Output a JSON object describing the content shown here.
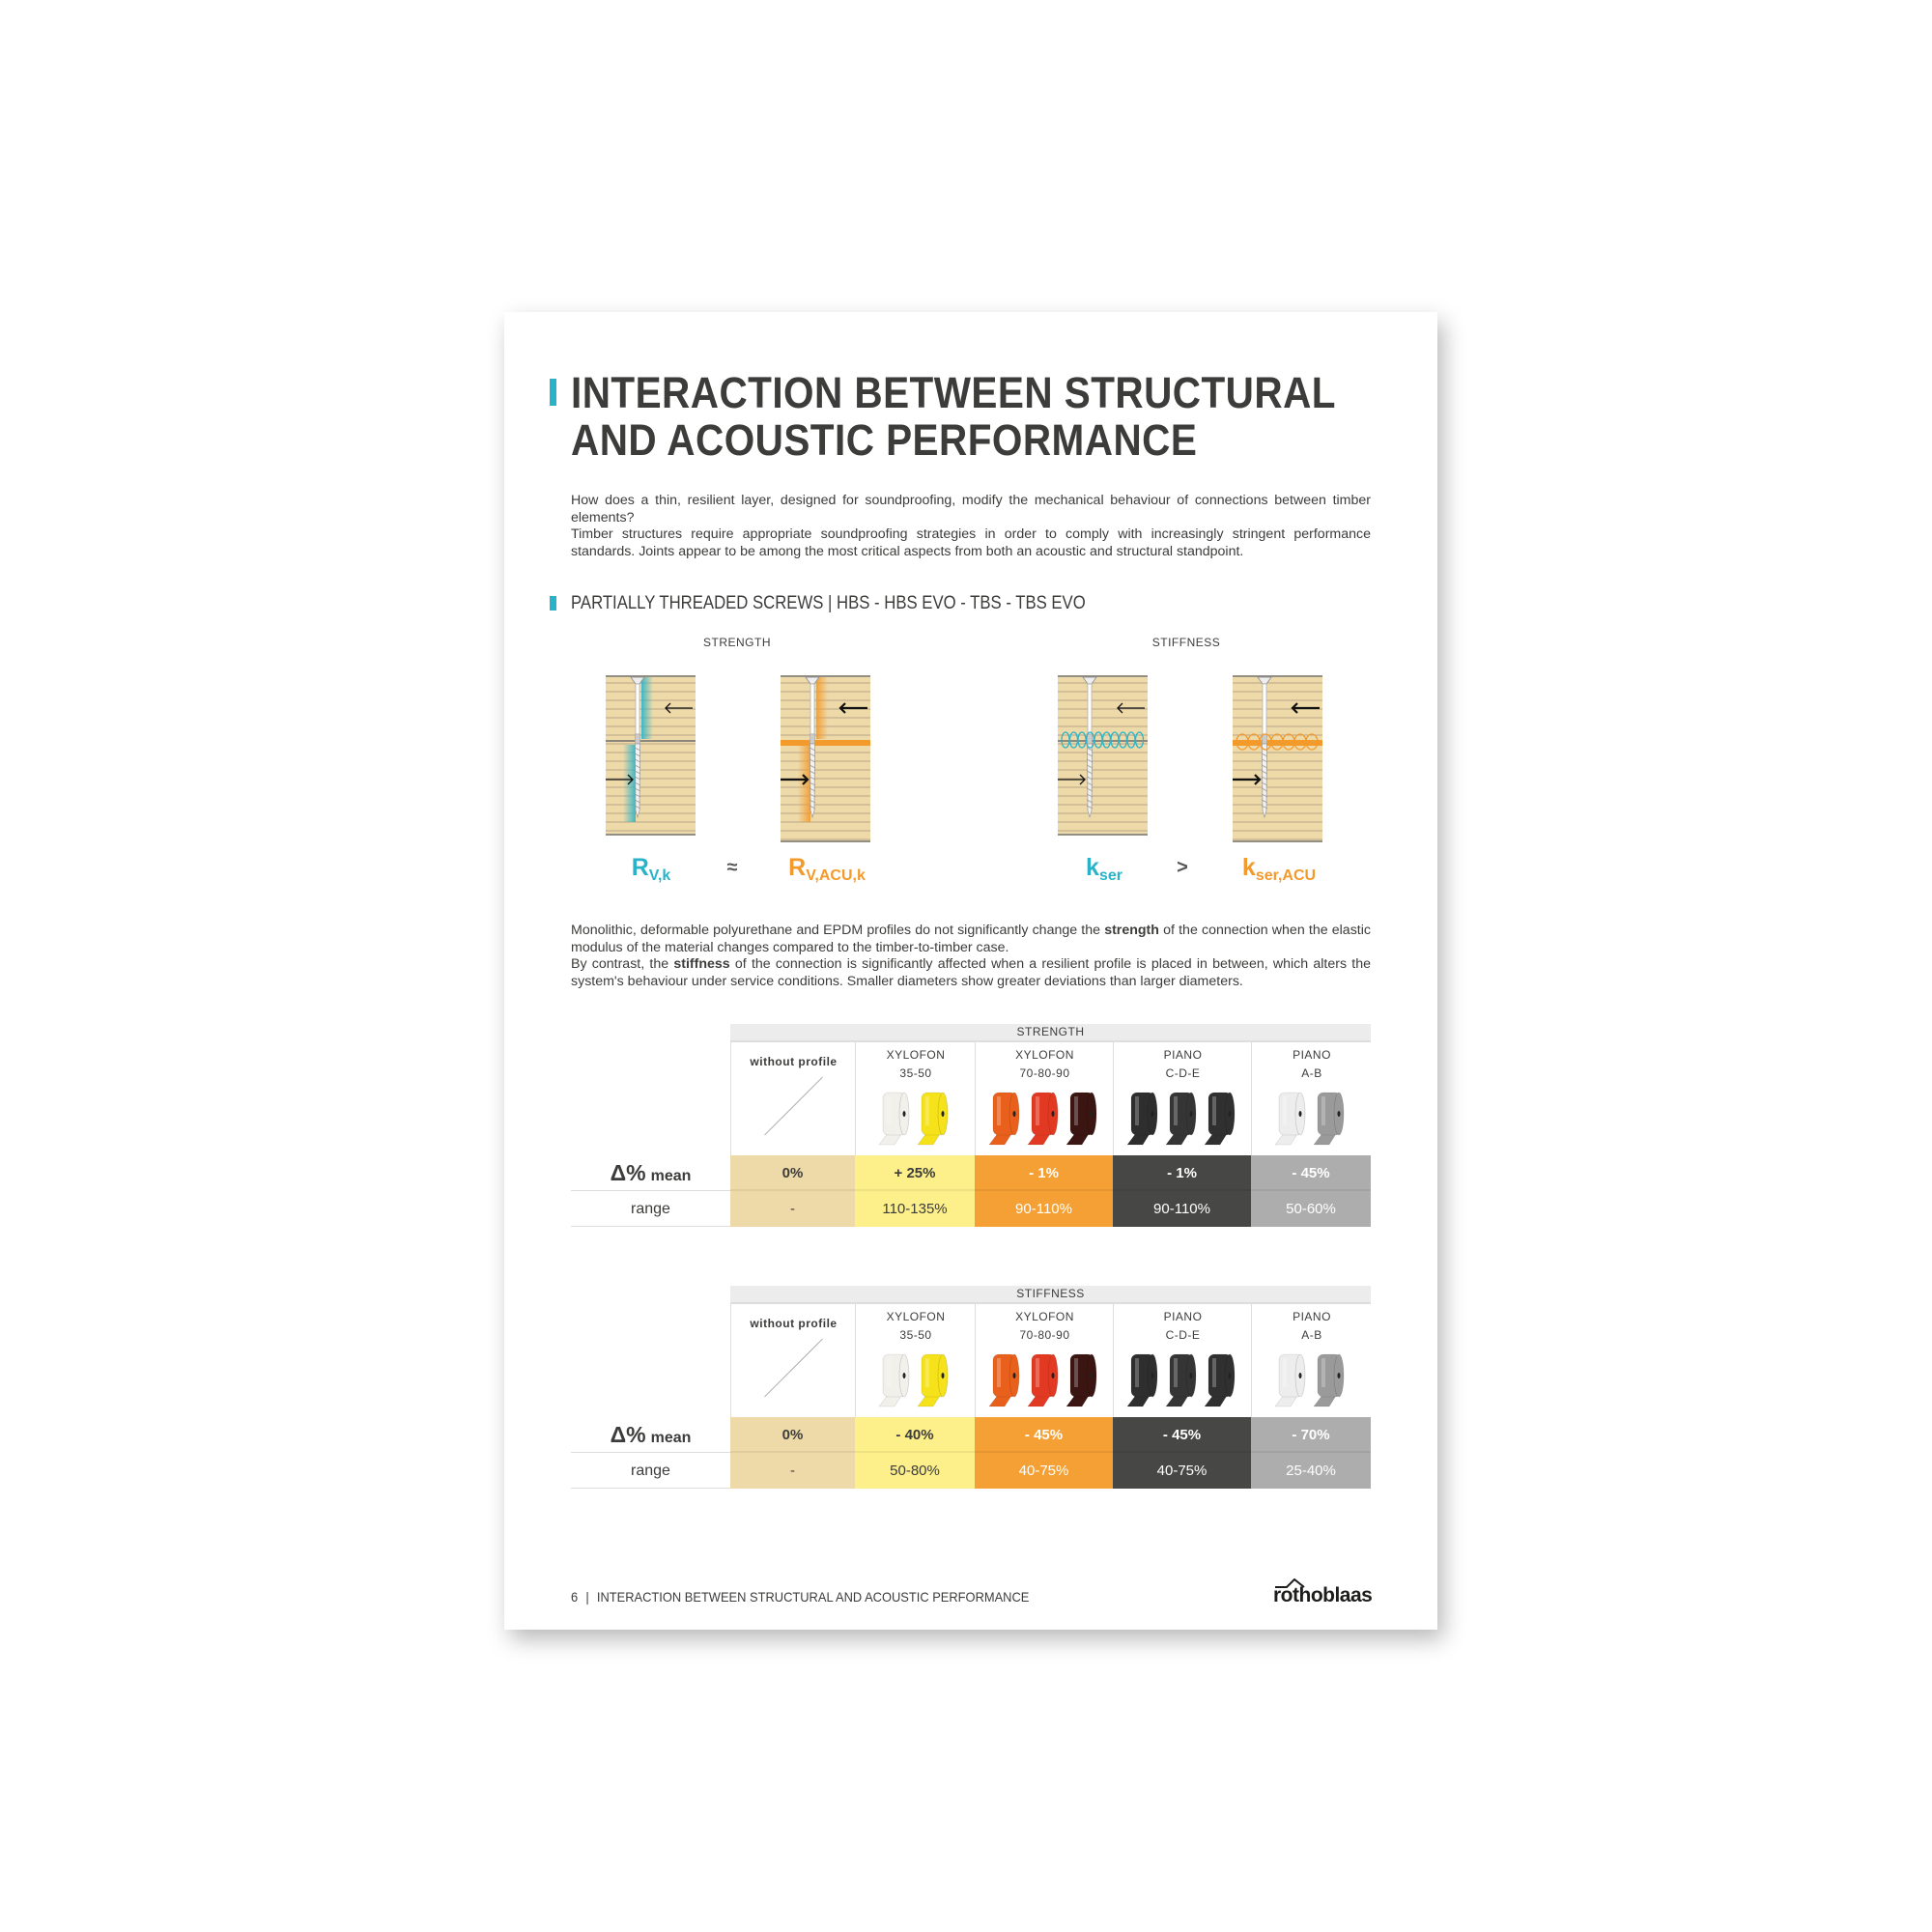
{
  "title_lines": [
    "INTERACTION BETWEEN STRUCTURAL",
    "AND ACOUSTIC PERFORMANCE"
  ],
  "intro": [
    "How does a thin, resilient layer, designed for soundproofing, modify the mechanical behaviour of connections between timber elements?",
    "Timber structures require appropriate soundproofing strategies in order to comply with increasingly stringent performance standards. Joints appear to be among the most critical aspects from both an acoustic and structural standpoint."
  ],
  "subheading": "PARTIALLY THREADED SCREWS | HBS - HBS EVO - TBS - TBS EVO",
  "diagrams": {
    "strength_label": "STRENGTH",
    "stiffness_label": "STIFFNESS",
    "symbols": {
      "rvk": {
        "main": "R",
        "sub": "V,k"
      },
      "approx": "≈",
      "rvacuk": {
        "main": "R",
        "sub": "V,ACU,k"
      },
      "kser": {
        "main": "k",
        "sub": "ser"
      },
      "greater": ">",
      "kseracu": {
        "main": "k",
        "sub": "ser,ACU"
      }
    },
    "colors": {
      "cyan": "#2ab3c8",
      "orange": "#f39a2c",
      "wood": "#eed9a8"
    }
  },
  "para2": {
    "l1a": "Monolithic, deformable polyurethane and EPDM profiles do not significantly change the ",
    "l1b": "strength",
    "l1c": " of the connection when the elastic modulus of the material changes compared to the timber-to-timber case.",
    "l2a": "By contrast, the ",
    "l2b": "stiffness",
    "l2c": " of the connection is significantly affected when a resilient profile is placed in between, which alters the system's behaviour under service conditions. Smaller diameters show greater deviations than larger diameters."
  },
  "columns": [
    {
      "name1": "without profile",
      "name2": "",
      "bg": "#eed9a8",
      "fg": "#3c3c3b",
      "rolls": []
    },
    {
      "name1": "XYLOFON",
      "name2": "35-50",
      "bg": "#fdf08a",
      "fg": "#3c3c3b",
      "rolls": [
        "#f1f0ea",
        "#f5e21a"
      ]
    },
    {
      "name1": "XYLOFON",
      "name2": "70-80-90",
      "bg": "#f4a034",
      "fg": "#ffffff",
      "rolls": [
        "#e8601c",
        "#e23a22",
        "#3a1512"
      ]
    },
    {
      "name1": "PIANO",
      "name2": "C-D-E",
      "bg": "#474745",
      "fg": "#ffffff",
      "rolls": [
        "#2e2e2e",
        "#353535",
        "#303030"
      ]
    },
    {
      "name1": "PIANO",
      "name2": "A-B",
      "bg": "#adadad",
      "fg": "#ffffff",
      "rolls": [
        "#ededed",
        "#9a9a9a"
      ]
    }
  ],
  "row_labels": {
    "delta": "Δ%",
    "mean": "mean",
    "range": "range"
  },
  "tables": [
    {
      "title": "STRENGTH",
      "mean": [
        "0%",
        "+ 25%",
        "- 1%",
        "- 1%",
        "- 45%"
      ],
      "range": [
        "-",
        "110-135%",
        "90-110%",
        "90-110%",
        "50-60%"
      ]
    },
    {
      "title": "STIFFNESS",
      "mean": [
        "0%",
        "- 40%",
        "- 45%",
        "- 45%",
        "- 70%"
      ],
      "range": [
        "-",
        "50-80%",
        "40-75%",
        "40-75%",
        "25-40%"
      ]
    }
  ],
  "footer": {
    "page": "6",
    "sep": "|",
    "title": "INTERACTION BETWEEN STRUCTURAL AND ACOUSTIC PERFORMANCE",
    "logo": "rothoblaas"
  }
}
